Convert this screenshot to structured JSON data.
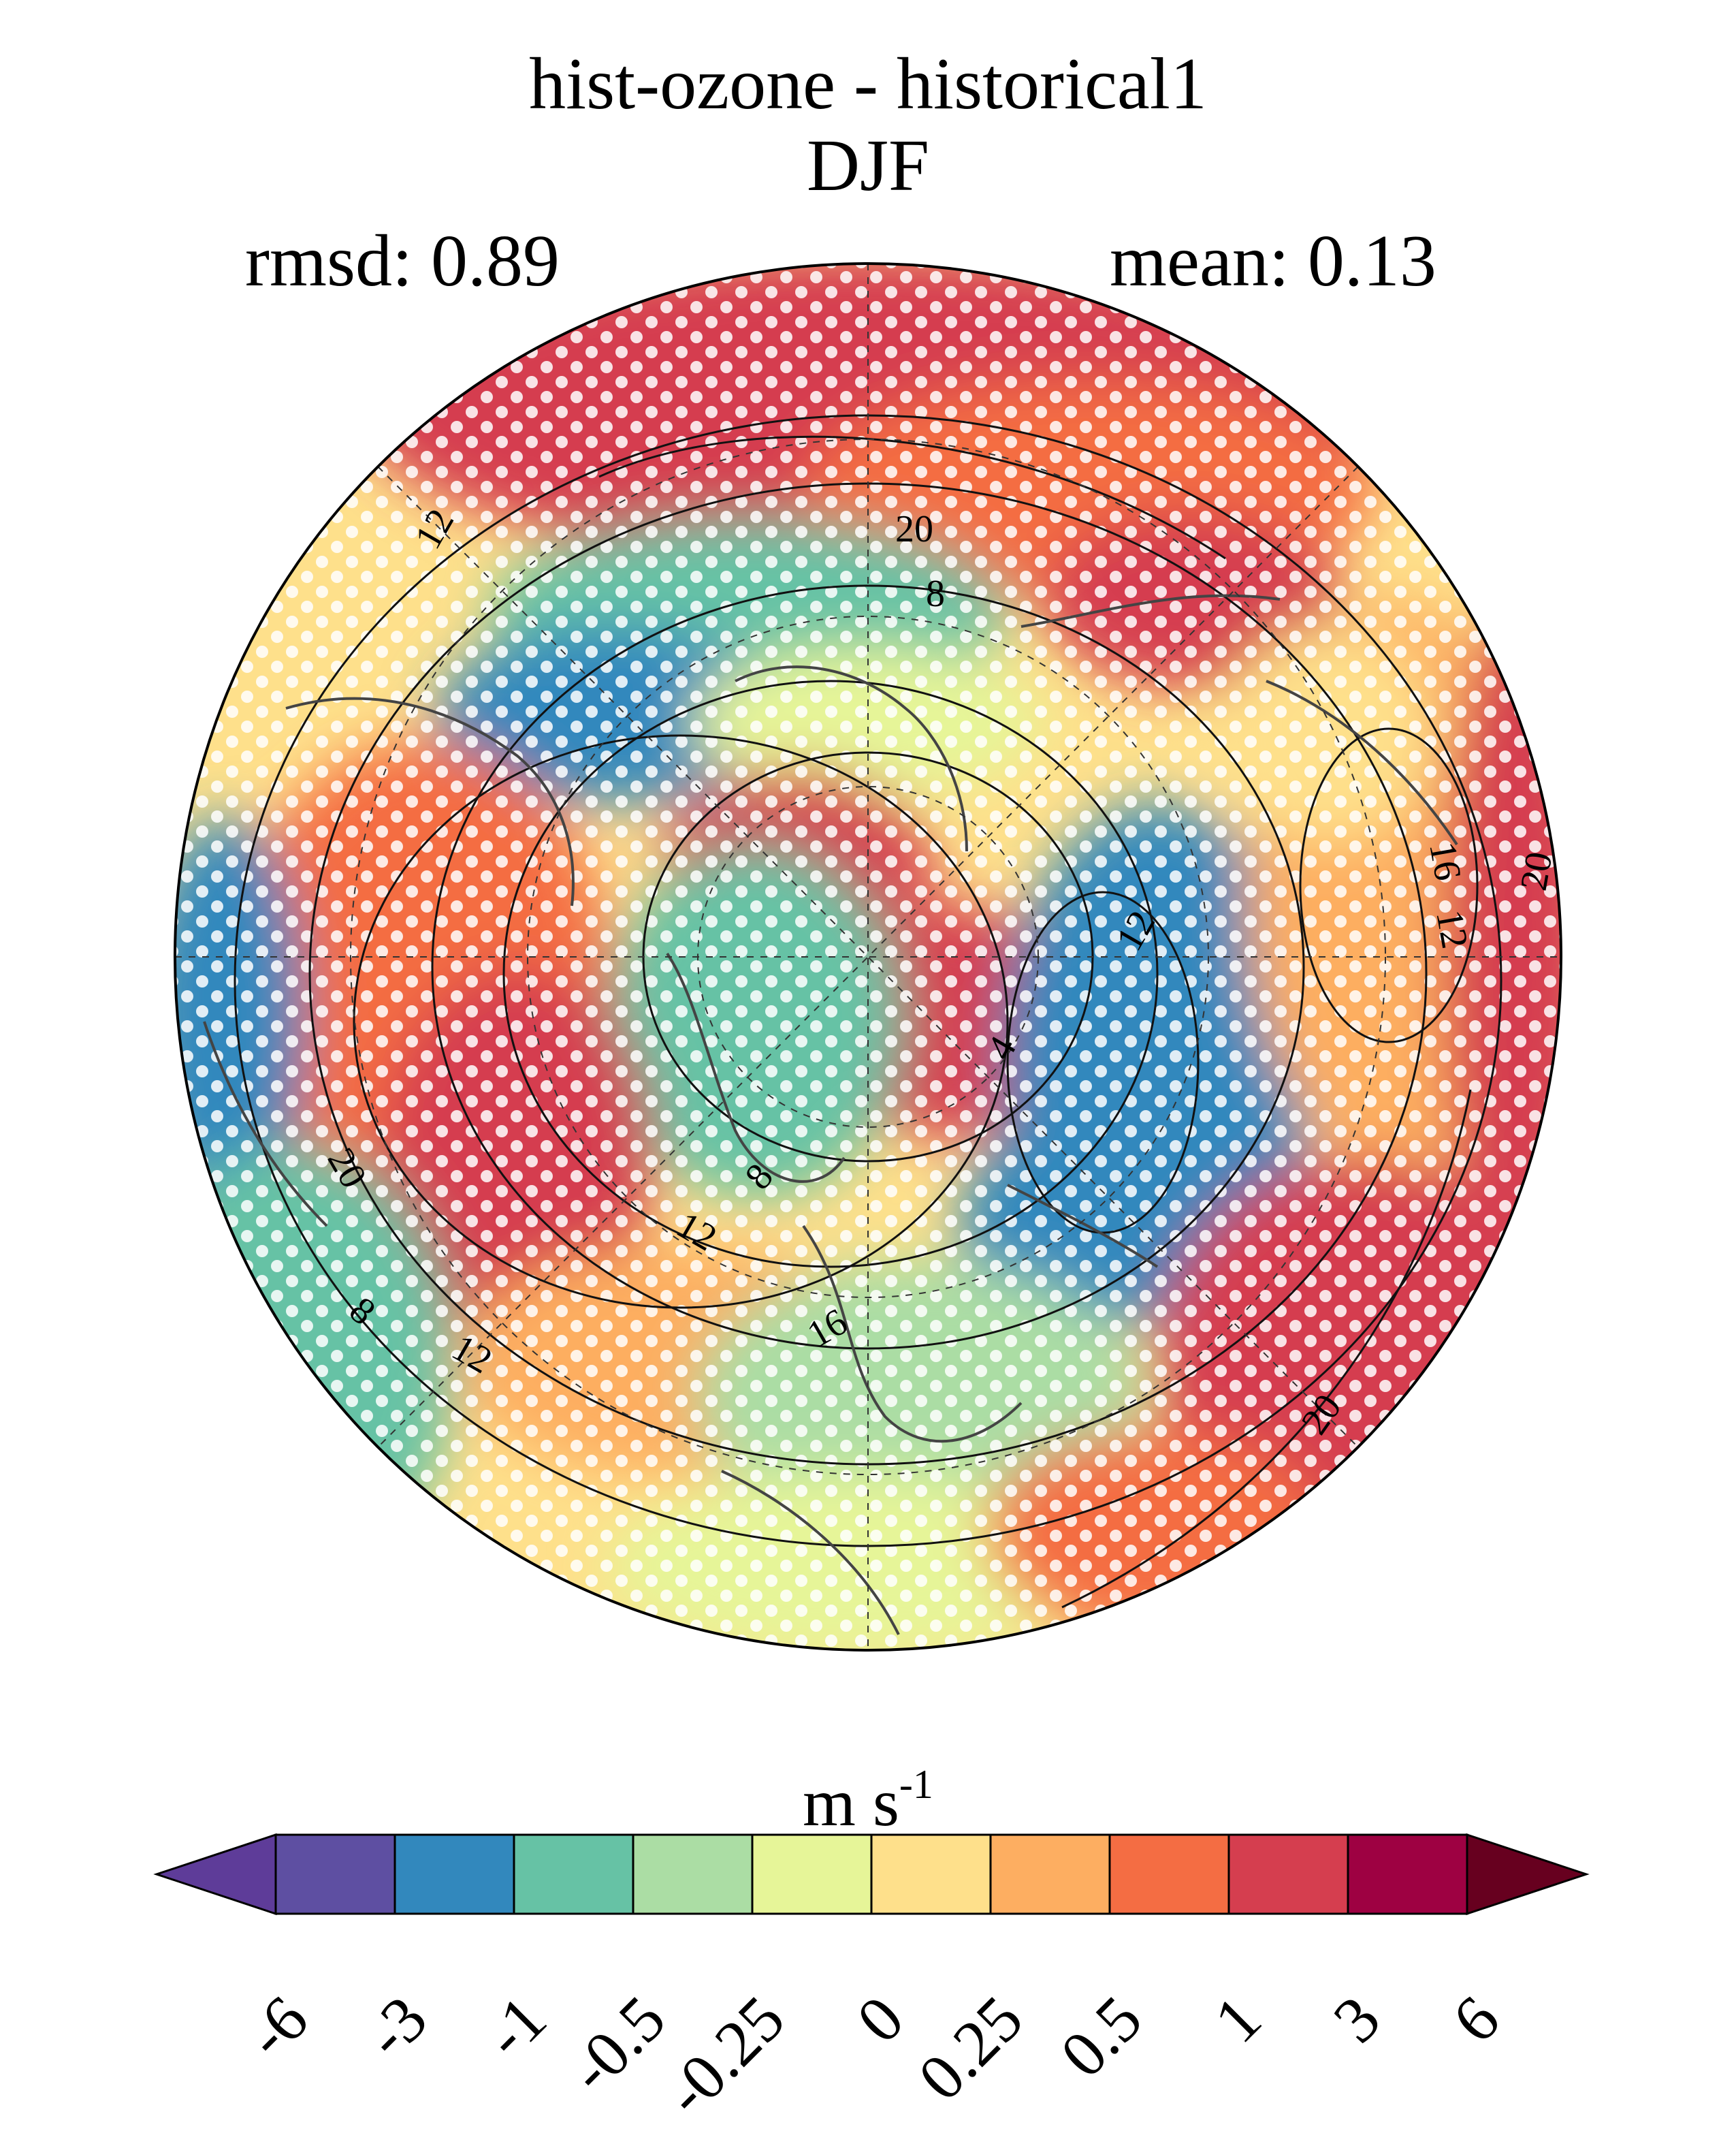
{
  "title": "hist-ozone - historical1",
  "season": "DJF",
  "stats": {
    "rmsd": "rmsd: 0.89",
    "mean": "mean: 0.13"
  },
  "units": {
    "base": "m s",
    "exponent": "-1"
  },
  "colorbar": {
    "ticks": [
      "-6",
      "-3",
      "-1",
      "-0.5",
      "-0.25",
      "0",
      "0.25",
      "0.5",
      "1",
      "3",
      "6"
    ],
    "colors": [
      "#5e3c99",
      "#5e4fa2",
      "#3288bd",
      "#66c2a5",
      "#abdda4",
      "#e6f598",
      "#fee08b",
      "#fdae61",
      "#f46d43",
      "#d53e4f",
      "#9e0142",
      "#67001f"
    ],
    "extend": "both"
  },
  "contour_labels": [
    "12",
    "20",
    "8",
    "12",
    "4",
    "16",
    "12",
    "20",
    "8",
    "12",
    "16",
    "20",
    "20",
    "12",
    "8"
  ]
}
